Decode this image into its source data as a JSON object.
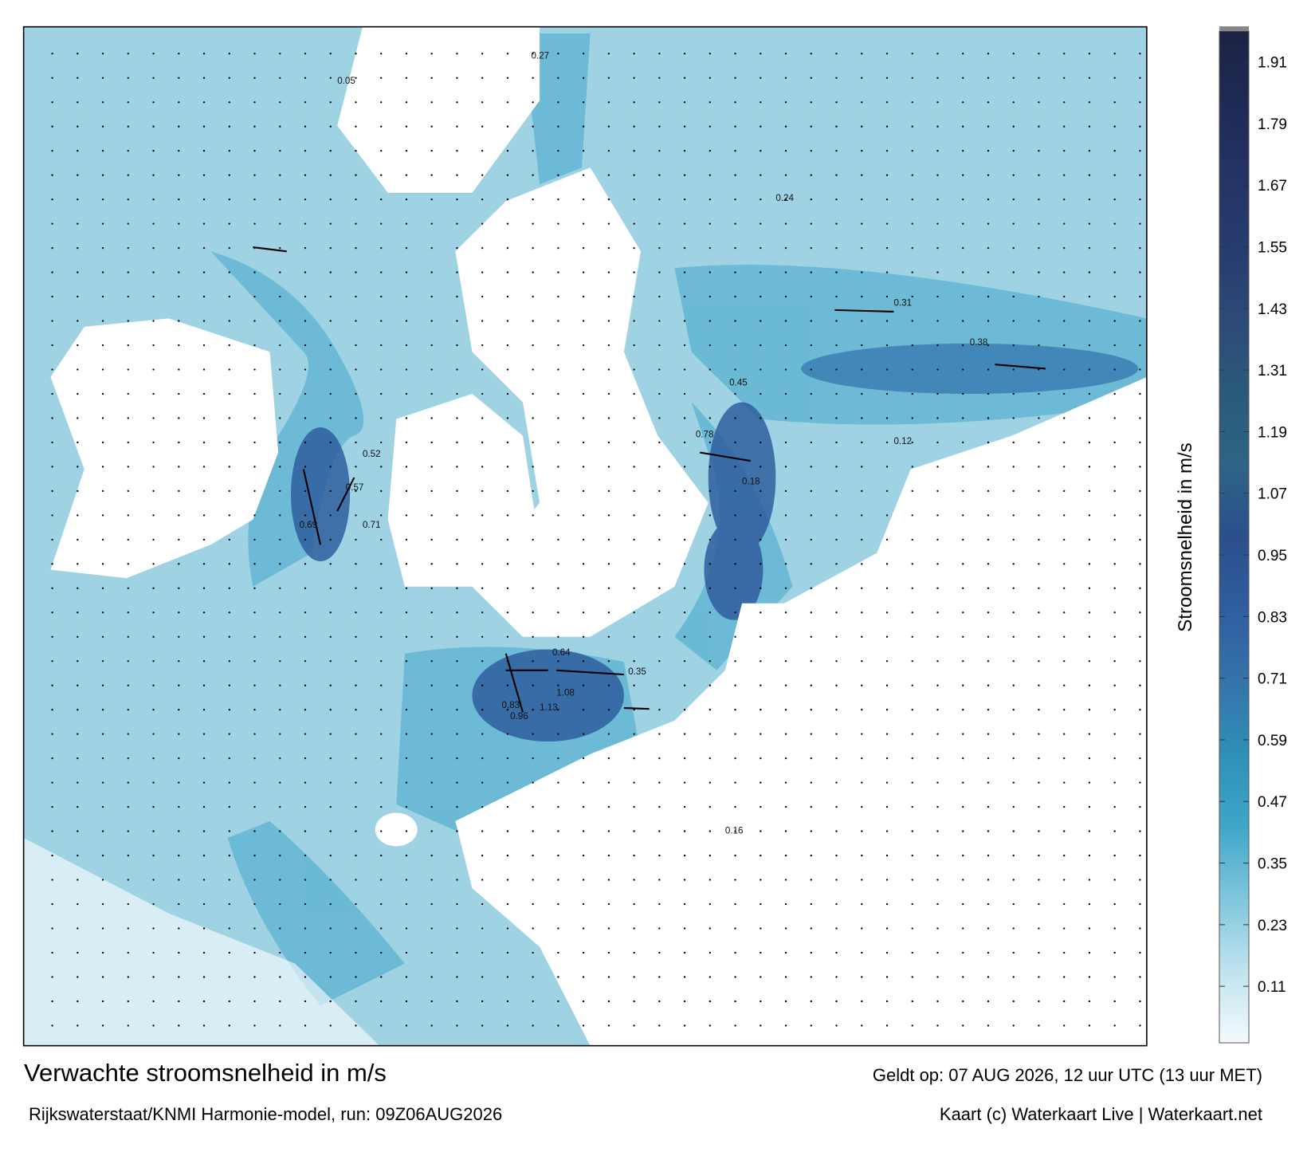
{
  "map": {
    "title": "Verwachte stroomsnelheid in m/s",
    "source": "Rijkswaterstaat/KNMI Harmonie-model, run: 09Z06AUG2026",
    "valid_time": "Geldt op: 07 AUG 2026, 12 uur UTC (13 uur MET)",
    "credit": "Kaart (c) Waterkaart Live | Waterkaart.net",
    "labels": [
      0.83,
      0.96,
      1.13,
      1.08,
      0.78,
      0.71,
      0.69,
      0.64,
      0.57,
      0.52,
      0.45,
      0.38,
      0.35,
      0.31,
      0.24,
      0.18,
      0.12,
      0.05,
      0.16,
      0.27
    ]
  },
  "colorbar": {
    "label": "Stroomsnelheid in m/s",
    "lim": [
      0,
      1.97
    ],
    "ticks": [
      0.11,
      0.23,
      0.35,
      0.47,
      0.59,
      0.71,
      0.83,
      0.95,
      1.07,
      1.19,
      1.31,
      1.43,
      1.55,
      1.67,
      1.79,
      1.91
    ],
    "colors": [
      "#f4fafc",
      "#bfe3ee",
      "#7fc6dd",
      "#3fa6c8",
      "#2f8fb8",
      "#3573aa",
      "#2f5e9e",
      "#2b4f8c",
      "#2e6486",
      "#2a5a7a",
      "#2d4a78",
      "#263c6e",
      "#243366",
      "#1f2a55",
      "#1b2244"
    ]
  }
}
